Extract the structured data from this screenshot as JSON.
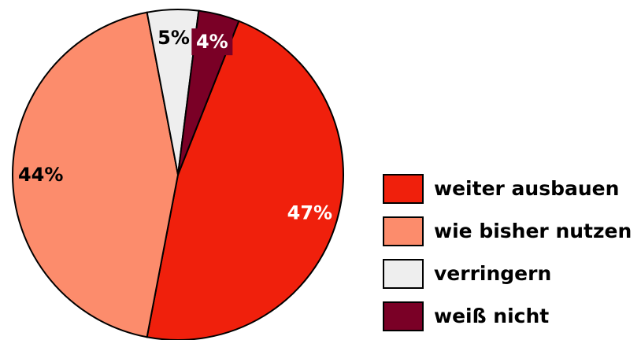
{
  "chart_data": {
    "type": "pie",
    "categories": [
      "weiter ausbauen",
      "wie bisher nutzen",
      "verringern",
      "weiß nicht"
    ],
    "values": [
      47,
      44,
      5,
      4
    ],
    "value_labels": [
      "47%",
      "44%",
      "5%",
      "4%"
    ],
    "colors": [
      "#f0200c",
      "#fc8c6c",
      "#eeeeee",
      "#7a0026"
    ],
    "legend": "right"
  }
}
